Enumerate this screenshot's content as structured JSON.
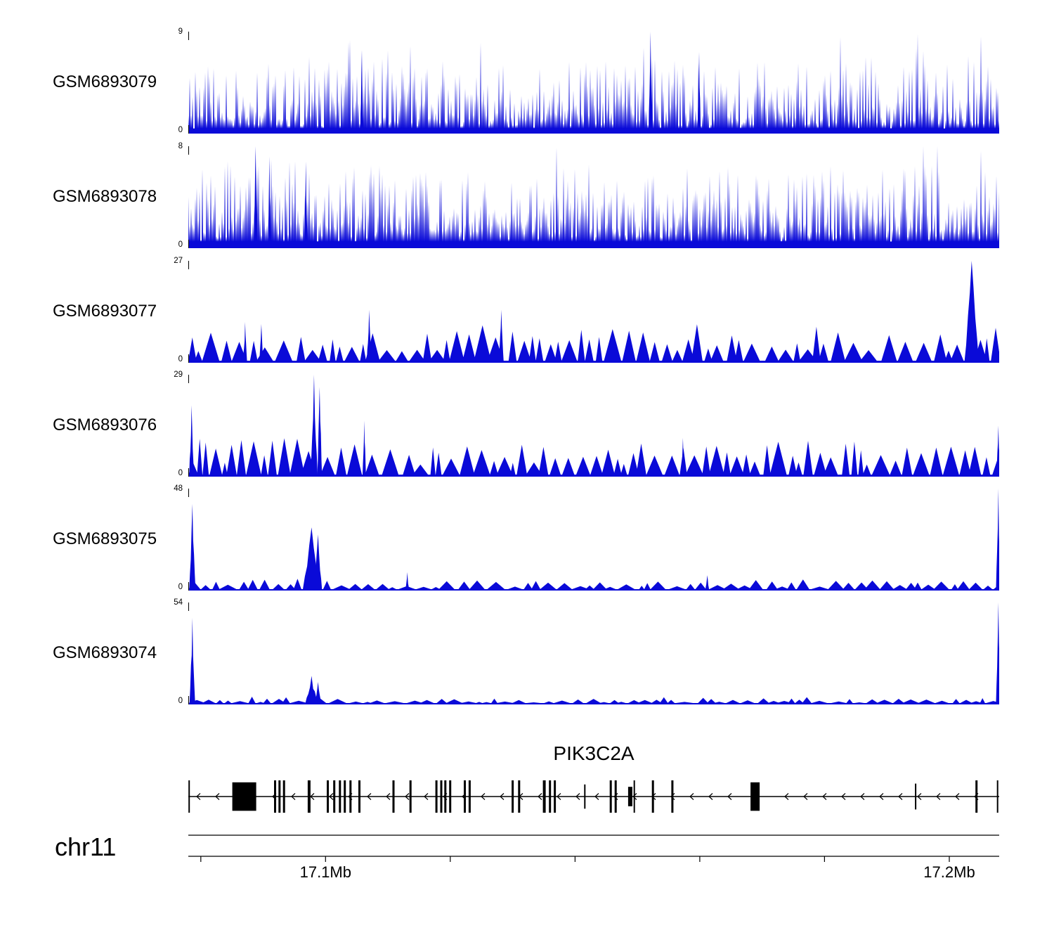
{
  "page": {
    "background": "#ffffff"
  },
  "chart_data": {
    "type": "area",
    "title": "",
    "color": "#0a0ad8",
    "description": "Genome browser coverage tracks over chr11 PIK3C2A locus",
    "region": {
      "chrom": "chr11",
      "start_mb": 17.078,
      "end_mb": 17.208,
      "unit": "Mb"
    },
    "tracks": [
      {
        "name": "GSM6893079",
        "ymax": 9,
        "ymin": 0,
        "style": "dense",
        "baseline": 0.1,
        "seed": 7,
        "envelope": [
          0.55,
          0.62,
          0.66,
          0.6,
          0.56,
          0.62,
          0.66,
          0.6,
          0.56,
          0.62,
          0.66,
          0.62
        ],
        "peaks": [
          {
            "x": 0.57,
            "w": 0.005,
            "h": 1.0
          },
          {
            "x": 0.214,
            "w": 0.004,
            "h": 0.82
          },
          {
            "x": 0.63,
            "w": 0.004,
            "h": 0.8
          }
        ]
      },
      {
        "name": "GSM6893078",
        "ymax": 8,
        "ymin": 0,
        "style": "dense",
        "baseline": 0.13,
        "seed": 13,
        "envelope": [
          0.66,
          0.76,
          0.62,
          0.66,
          0.6,
          0.66,
          0.6,
          0.66,
          0.62,
          0.66,
          0.7,
          0.66
        ],
        "peaks": [
          {
            "x": 0.083,
            "w": 0.005,
            "h": 1.0
          },
          {
            "x": 0.1,
            "w": 0.004,
            "h": 0.9
          },
          {
            "x": 0.145,
            "w": 0.004,
            "h": 0.85
          }
        ]
      },
      {
        "name": "GSM6893077",
        "ymax": 27,
        "ymin": 0,
        "style": "peaks",
        "baseline": 0.02,
        "seed": 21,
        "envelope": [
          0.22,
          0.25,
          0.3,
          0.25,
          0.3,
          0.28,
          0.25,
          0.3,
          0.28,
          0.3,
          0.26,
          0.3
        ],
        "peaks": [
          {
            "x": 0.07,
            "w": 0.005,
            "h": 0.4
          },
          {
            "x": 0.09,
            "w": 0.005,
            "h": 0.38
          },
          {
            "x": 0.223,
            "w": 0.006,
            "h": 0.52
          },
          {
            "x": 0.386,
            "w": 0.006,
            "h": 0.52
          },
          {
            "x": 0.966,
            "w": 0.018,
            "h": 1.0
          }
        ]
      },
      {
        "name": "GSM6893076",
        "ymax": 29,
        "ymin": 0,
        "style": "peaks",
        "baseline": 0.02,
        "seed": 29,
        "envelope": [
          0.3,
          0.3,
          0.28,
          0.25,
          0.25,
          0.25,
          0.28,
          0.25,
          0.3,
          0.28,
          0.25,
          0.3
        ],
        "peaks": [
          {
            "x": 0.004,
            "w": 0.006,
            "h": 0.7
          },
          {
            "x": 0.155,
            "w": 0.009,
            "h": 1.0
          },
          {
            "x": 0.162,
            "w": 0.006,
            "h": 0.88
          },
          {
            "x": 0.217,
            "w": 0.004,
            "h": 0.55
          },
          {
            "x": 0.61,
            "w": 0.004,
            "h": 0.38
          },
          {
            "x": 0.999,
            "w": 0.005,
            "h": 0.5
          }
        ]
      },
      {
        "name": "GSM6893075",
        "ymax": 48,
        "ymin": 0,
        "style": "peaks",
        "baseline": 0.012,
        "seed": 37,
        "envelope": [
          0.08,
          0.1,
          0.08,
          0.07,
          0.08,
          0.07,
          0.07,
          0.08,
          0.09,
          0.08,
          0.07,
          0.08
        ],
        "peaks": [
          {
            "x": 0.005,
            "w": 0.008,
            "h": 0.85
          },
          {
            "x": 0.152,
            "w": 0.022,
            "h": 0.62
          },
          {
            "x": 0.16,
            "w": 0.01,
            "h": 0.55
          },
          {
            "x": 0.27,
            "w": 0.004,
            "h": 0.18
          },
          {
            "x": 0.64,
            "w": 0.005,
            "h": 0.15
          },
          {
            "x": 0.999,
            "w": 0.006,
            "h": 1.0
          }
        ]
      },
      {
        "name": "GSM6893074",
        "ymax": 54,
        "ymin": 0,
        "style": "peaks",
        "baseline": 0.01,
        "seed": 43,
        "envelope": [
          0.05,
          0.06,
          0.05,
          0.05,
          0.05,
          0.05,
          0.06,
          0.05,
          0.06,
          0.05,
          0.05,
          0.06
        ],
        "peaks": [
          {
            "x": 0.005,
            "w": 0.007,
            "h": 0.85
          },
          {
            "x": 0.152,
            "w": 0.016,
            "h": 0.28
          },
          {
            "x": 0.16,
            "w": 0.008,
            "h": 0.22
          },
          {
            "x": 0.999,
            "w": 0.006,
            "h": 1.0
          }
        ]
      }
    ],
    "gene_track": {
      "gene": "PIK3C2A",
      "label": "PIK3C2A",
      "strand": "-",
      "arrow_spacing": 27,
      "exons": [
        [
          0.001,
          2,
          1
        ],
        [
          0.069,
          34,
          0.88
        ],
        [
          0.107,
          3,
          1
        ],
        [
          0.1125,
          3,
          1
        ],
        [
          0.118,
          3,
          1
        ],
        [
          0.149,
          4,
          1
        ],
        [
          0.172,
          3,
          1
        ],
        [
          0.18,
          3,
          1
        ],
        [
          0.187,
          3,
          1
        ],
        [
          0.193,
          3,
          1
        ],
        [
          0.2,
          3,
          1
        ],
        [
          0.211,
          3,
          1
        ],
        [
          0.253,
          3,
          1
        ],
        [
          0.274,
          3,
          1
        ],
        [
          0.306,
          3,
          1
        ],
        [
          0.312,
          3,
          1
        ],
        [
          0.317,
          3,
          1
        ],
        [
          0.323,
          3,
          1
        ],
        [
          0.341,
          3,
          1
        ],
        [
          0.347,
          3,
          1
        ],
        [
          0.4,
          3,
          1
        ],
        [
          0.408,
          3,
          1
        ],
        [
          0.439,
          4,
          1
        ],
        [
          0.446,
          3,
          1
        ],
        [
          0.452,
          3,
          1
        ],
        [
          0.489,
          2,
          0.75
        ],
        [
          0.521,
          3,
          1
        ],
        [
          0.527,
          3,
          1
        ],
        [
          0.545,
          6,
          0.6
        ],
        [
          0.55,
          2,
          1
        ],
        [
          0.573,
          3,
          1
        ],
        [
          0.597,
          3,
          1
        ],
        [
          0.699,
          13,
          0.88
        ],
        [
          0.897,
          2,
          0.8
        ],
        [
          0.972,
          3,
          1
        ],
        [
          0.998,
          2,
          1
        ]
      ]
    },
    "axis": {
      "chrom_label": "chr11",
      "ticks": [
        {
          "mb": 17.08
        },
        {
          "mb": 17.1,
          "label": "17.1Mb"
        },
        {
          "mb": 17.12
        },
        {
          "mb": 17.14
        },
        {
          "mb": 17.16
        },
        {
          "mb": 17.18
        },
        {
          "mb": 17.2,
          "label": "17.2Mb"
        }
      ]
    }
  }
}
